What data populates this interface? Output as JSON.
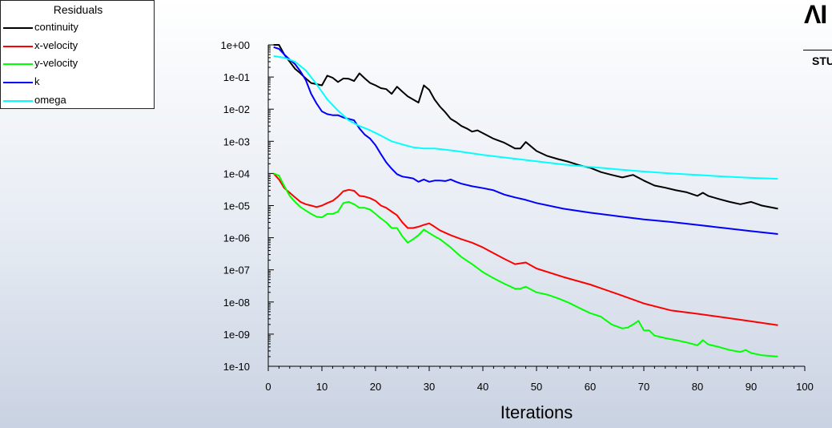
{
  "chart_data": {
    "type": "line",
    "title": "",
    "xlabel": "Iterations",
    "ylabel": "",
    "yscale": "log",
    "xlim": [
      0,
      100
    ],
    "ylim": [
      1e-10,
      1
    ],
    "grid": false,
    "legend_title": "Residuals",
    "legend_position": "top-left",
    "x_ticks": [
      "0",
      "10",
      "20",
      "30",
      "40",
      "50",
      "60",
      "70",
      "80",
      "90",
      "100"
    ],
    "y_ticks": [
      "1e+00",
      "1e-01",
      "1e-02",
      "1e-03",
      "1e-04",
      "1e-05",
      "1e-06",
      "1e-07",
      "1e-08",
      "1e-09",
      "1e-10"
    ],
    "series": [
      {
        "name": "continuity",
        "color": "#000000",
        "x": [
          1,
          2,
          3,
          4,
          5,
          6,
          7,
          8,
          9,
          10,
          11,
          12,
          13,
          14,
          15,
          16,
          17,
          18,
          19,
          20,
          21,
          22,
          23,
          24,
          25,
          26,
          27,
          28,
          29,
          30,
          31,
          32,
          33,
          34,
          35,
          36,
          37,
          38,
          39,
          40,
          42,
          44,
          46,
          47,
          48,
          50,
          52,
          54,
          56,
          58,
          60,
          62,
          64,
          66,
          68,
          70,
          72,
          74,
          76,
          78,
          80,
          81,
          82,
          84,
          86,
          88,
          90,
          92,
          95
        ],
        "y": [
          1.0,
          1.0,
          0.5,
          0.3,
          0.18,
          0.13,
          0.09,
          0.065,
          0.06,
          0.055,
          0.11,
          0.095,
          0.07,
          0.09,
          0.088,
          0.075,
          0.13,
          0.09,
          0.065,
          0.055,
          0.045,
          0.042,
          0.03,
          0.05,
          0.035,
          0.025,
          0.02,
          0.016,
          0.055,
          0.04,
          0.02,
          0.012,
          0.008,
          0.005,
          0.004,
          0.003,
          0.0025,
          0.002,
          0.0022,
          0.0018,
          0.0012,
          0.0009,
          0.0006,
          0.0006,
          0.00095,
          0.0005,
          0.00035,
          0.00028,
          0.00023,
          0.00018,
          0.00015,
          0.00011,
          9e-05,
          7.5e-05,
          9e-05,
          6e-05,
          4.2e-05,
          3.6e-05,
          3e-05,
          2.6e-05,
          2e-05,
          2.5e-05,
          2e-05,
          1.6e-05,
          1.3e-05,
          1.1e-05,
          1.3e-05,
          1e-05,
          8e-06
        ]
      },
      {
        "name": "x-velocity",
        "color": "#ff0000",
        "x": [
          1,
          2,
          3,
          4,
          5,
          6,
          7,
          8,
          9,
          10,
          11,
          12,
          13,
          14,
          15,
          16,
          17,
          18,
          19,
          20,
          21,
          22,
          23,
          24,
          25,
          26,
          27,
          28,
          29,
          30,
          31,
          32,
          34,
          36,
          38,
          40,
          42,
          44,
          46,
          48,
          50,
          55,
          60,
          65,
          70,
          75,
          80,
          85,
          90,
          95
        ],
        "y": [
          0.0001,
          6.5e-05,
          3.5e-05,
          2.5e-05,
          1.8e-05,
          1.3e-05,
          1.1e-05,
          1e-05,
          9e-06,
          1e-05,
          1.2e-05,
          1.4e-05,
          1.9e-05,
          2.8e-05,
          3.1e-05,
          2.9e-05,
          2e-05,
          1.9e-05,
          1.7e-05,
          1.4e-05,
          1e-05,
          8.5e-06,
          6.5e-06,
          5e-06,
          3e-06,
          2e-06,
          2e-06,
          2.2e-06,
          2.5e-06,
          2.8e-06,
          2.2e-06,
          1.7e-06,
          1.2e-06,
          9e-07,
          7e-07,
          5e-07,
          3.3e-07,
          2.2e-07,
          1.5e-07,
          1.7e-07,
          1.1e-07,
          6e-08,
          3.5e-08,
          1.8e-08,
          9e-09,
          5.5e-09,
          4.3e-09,
          3.3e-09,
          2.5e-09,
          1.9e-09
        ]
      },
      {
        "name": "y-velocity",
        "color": "#00ff00",
        "x": [
          1,
          2,
          3,
          4,
          5,
          6,
          7,
          8,
          9,
          10,
          11,
          12,
          13,
          14,
          15,
          16,
          17,
          18,
          19,
          20,
          21,
          22,
          23,
          24,
          25,
          26,
          27,
          28,
          29,
          30,
          31,
          32,
          34,
          36,
          38,
          40,
          42,
          44,
          46,
          47,
          48,
          50,
          52,
          54,
          56,
          58,
          60,
          62,
          64,
          66,
          67,
          68,
          69,
          70,
          71,
          72,
          74,
          76,
          78,
          80,
          81,
          82,
          84,
          86,
          88,
          89,
          90,
          92,
          95
        ],
        "y": [
          0.0001,
          8.5e-05,
          4e-05,
          2e-05,
          1.3e-05,
          9e-06,
          7e-06,
          5.5e-06,
          4.5e-06,
          4.3e-06,
          5.5e-06,
          5.5e-06,
          6.5e-06,
          1.2e-05,
          1.3e-05,
          1.1e-05,
          8.5e-06,
          8.5e-06,
          7.5e-06,
          5.5e-06,
          4e-06,
          3e-06,
          2e-06,
          2e-06,
          1.1e-06,
          7e-07,
          9e-07,
          1.2e-06,
          1.8e-06,
          1.4e-06,
          1.1e-06,
          9e-07,
          5e-07,
          2.5e-07,
          1.5e-07,
          8.5e-08,
          5.5e-08,
          3.7e-08,
          2.6e-08,
          2.6e-08,
          3e-08,
          2e-08,
          1.7e-08,
          1.3e-08,
          9.5e-09,
          6.5e-09,
          4.5e-09,
          3.5e-09,
          2e-09,
          1.5e-09,
          1.6e-09,
          2e-09,
          2.6e-09,
          1.3e-09,
          1.3e-09,
          9e-10,
          7.5e-10,
          6.5e-10,
          5.5e-10,
          4.5e-10,
          6.5e-10,
          4.8e-10,
          4e-10,
          3.2e-10,
          2.8e-10,
          3.2e-10,
          2.6e-10,
          2.2e-10,
          2e-10
        ]
      },
      {
        "name": "k",
        "color": "#0000ff",
        "x": [
          1,
          2,
          3,
          4,
          5,
          6,
          7,
          8,
          9,
          10,
          11,
          12,
          13,
          14,
          15,
          16,
          17,
          18,
          19,
          20,
          21,
          22,
          23,
          24,
          25,
          26,
          27,
          28,
          29,
          30,
          31,
          32,
          33,
          34,
          35,
          36,
          38,
          40,
          42,
          44,
          46,
          48,
          50,
          55,
          60,
          65,
          70,
          75,
          80,
          85,
          90,
          95
        ],
        "y": [
          0.85,
          0.75,
          0.5,
          0.35,
          0.25,
          0.15,
          0.08,
          0.03,
          0.015,
          0.0085,
          0.007,
          0.0065,
          0.0065,
          0.0055,
          0.005,
          0.0045,
          0.0025,
          0.0016,
          0.0012,
          0.00075,
          0.0004,
          0.00022,
          0.00014,
          9.5e-05,
          8e-05,
          7.5e-05,
          7e-05,
          5.5e-05,
          6.5e-05,
          5.5e-05,
          6e-05,
          6e-05,
          5.8e-05,
          6.5e-05,
          5.5e-05,
          4.8e-05,
          4e-05,
          3.5e-05,
          3e-05,
          2.2e-05,
          1.8e-05,
          1.5e-05,
          1.2e-05,
          8e-06,
          6e-06,
          4.7e-06,
          3.7e-06,
          3.1e-06,
          2.5e-06,
          2e-06,
          1.6e-06,
          1.3e-06
        ]
      },
      {
        "name": "omega",
        "color": "#00ffff",
        "x": [
          1,
          3,
          5,
          7,
          9,
          11,
          13,
          15,
          17,
          19,
          21,
          23,
          25,
          27,
          29,
          31,
          33,
          35,
          40,
          45,
          50,
          55,
          60,
          65,
          70,
          75,
          80,
          85,
          90,
          95
        ],
        "y": [
          0.45,
          0.4,
          0.3,
          0.16,
          0.06,
          0.02,
          0.009,
          0.0045,
          0.003,
          0.0022,
          0.0015,
          0.001,
          0.0008,
          0.00065,
          0.0006,
          0.0006,
          0.00055,
          0.0005,
          0.00038,
          0.0003,
          0.00024,
          0.00019,
          0.00016,
          0.000135,
          0.000115,
          0.0001,
          9e-05,
          8e-05,
          7.3e-05,
          6.8e-05
        ]
      }
    ]
  },
  "brand": {
    "logo_text": "ΛI",
    "sub_text": "STU"
  }
}
